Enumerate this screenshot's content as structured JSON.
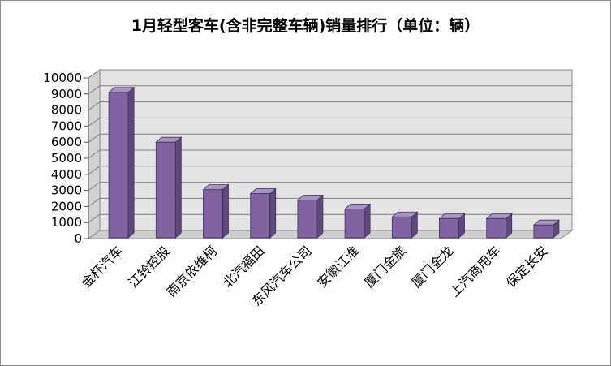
{
  "chart_data": {
    "type": "bar",
    "title": "1月轻型客车(含非完整车辆)销量排行（单位：辆）",
    "categories": [
      "金杯汽车",
      "江铃控股",
      "南京依维柯",
      "北汽福田",
      "东风汽车公司",
      "安徽江淮",
      "厦门金旅",
      "厦门金龙",
      "上汽商用车",
      "保定长安"
    ],
    "values": [
      9100,
      6000,
      3050,
      2800,
      2400,
      1850,
      1350,
      1250,
      1250,
      850
    ],
    "xlabel": "",
    "ylabel": "",
    "ylim": [
      0,
      10000
    ],
    "yticks": [
      "0",
      "1000",
      "2000",
      "3000",
      "4000",
      "5000",
      "6000",
      "7000",
      "8000",
      "9000",
      "10000"
    ],
    "grid": true,
    "legend": "none",
    "colors": {
      "bar_front": "#8064a2",
      "bar_side": "#5e4a7a",
      "bar_top": "#a894c2",
      "bar_stroke": "#3f2f58",
      "wall": "#e4e4e4",
      "floor": "#cfcfcf",
      "grid": "#808080"
    }
  }
}
